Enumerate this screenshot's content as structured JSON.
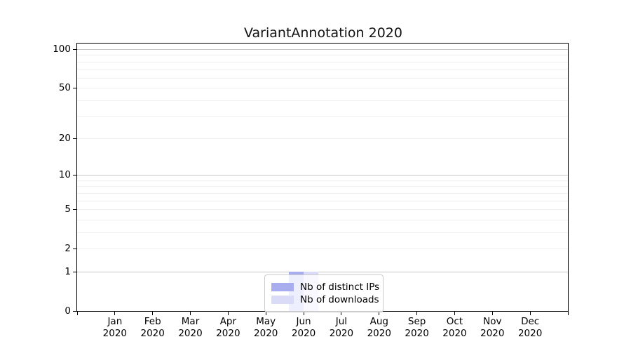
{
  "figure": {
    "title": "VariantAnnotation 2020",
    "colors": {
      "ips_bar": "#a7adee",
      "downloads_bar": "#dadcf7",
      "grid_major": "#c6c6c6",
      "grid_minor": "#efefef",
      "spine": "#000000",
      "legend_border": "#cccccc",
      "text": "#111111"
    }
  },
  "legend": {
    "items": [
      {
        "label": "Nb of distinct IPs",
        "color_key": "ips_bar"
      },
      {
        "label": "Nb of downloads",
        "color_key": "downloads_bar"
      }
    ]
  },
  "chart_data": {
    "type": "bar",
    "title": "VariantAnnotation 2020",
    "categories": [
      "Jan 2020",
      "Feb 2020",
      "Mar 2020",
      "Apr 2020",
      "May 2020",
      "Jun 2020",
      "Jul 2020",
      "Aug 2020",
      "Sep 2020",
      "Oct 2020",
      "Nov 2020",
      "Dec 2020"
    ],
    "series": [
      {
        "name": "Nb of distinct IPs",
        "color": "#a7adee",
        "values": [
          0,
          0,
          0,
          0,
          0,
          1,
          0,
          0,
          0,
          0,
          0,
          0
        ]
      },
      {
        "name": "Nb of downloads",
        "color": "#dadcf7",
        "values": [
          0,
          0,
          0,
          0,
          0,
          1,
          0,
          0,
          0,
          0,
          0,
          0
        ]
      }
    ],
    "xlabel": "",
    "ylabel": "",
    "yscale": "log1p",
    "ylim": [
      0,
      110
    ],
    "yticks": [
      100,
      50,
      20,
      10,
      5,
      2,
      1,
      0
    ],
    "major_gridlines": [
      1,
      10,
      100
    ],
    "minor_gridlines": [
      2,
      3,
      4,
      5,
      6,
      7,
      8,
      9,
      20,
      30,
      40,
      50,
      60,
      70,
      80,
      90
    ],
    "grid": true,
    "legend_position": "lower-center"
  }
}
